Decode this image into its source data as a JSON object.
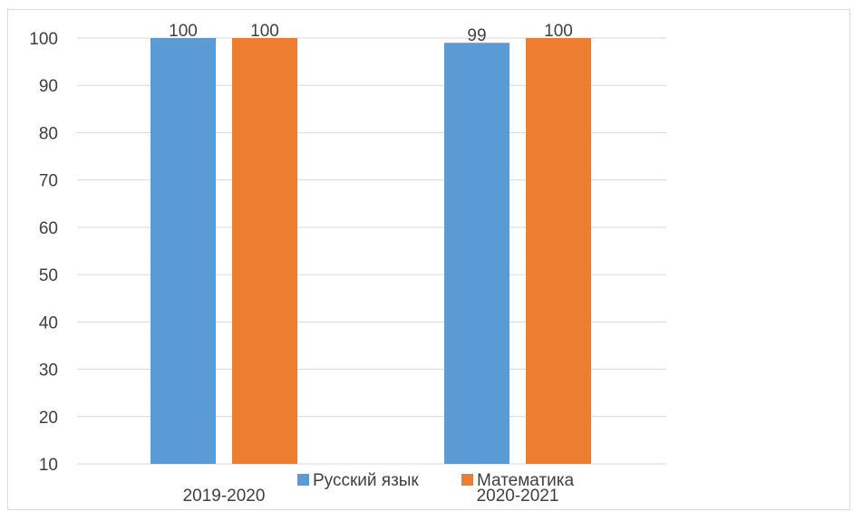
{
  "chart_data": {
    "type": "bar",
    "categories": [
      "2019-2020",
      "2020-2021"
    ],
    "series": [
      {
        "name": "Русский язык",
        "values": [
          100,
          99
        ],
        "color": "#5b9bd5"
      },
      {
        "name": "Математика",
        "values": [
          100,
          100
        ],
        "color": "#ed7d31"
      }
    ],
    "ylim": [
      10,
      100
    ],
    "yticks": [
      10,
      20,
      30,
      40,
      50,
      60,
      70,
      80,
      90,
      100
    ],
    "grid": true,
    "legend": "bottom",
    "data_labels": true,
    "title": "",
    "xlabel": "",
    "ylabel": ""
  }
}
